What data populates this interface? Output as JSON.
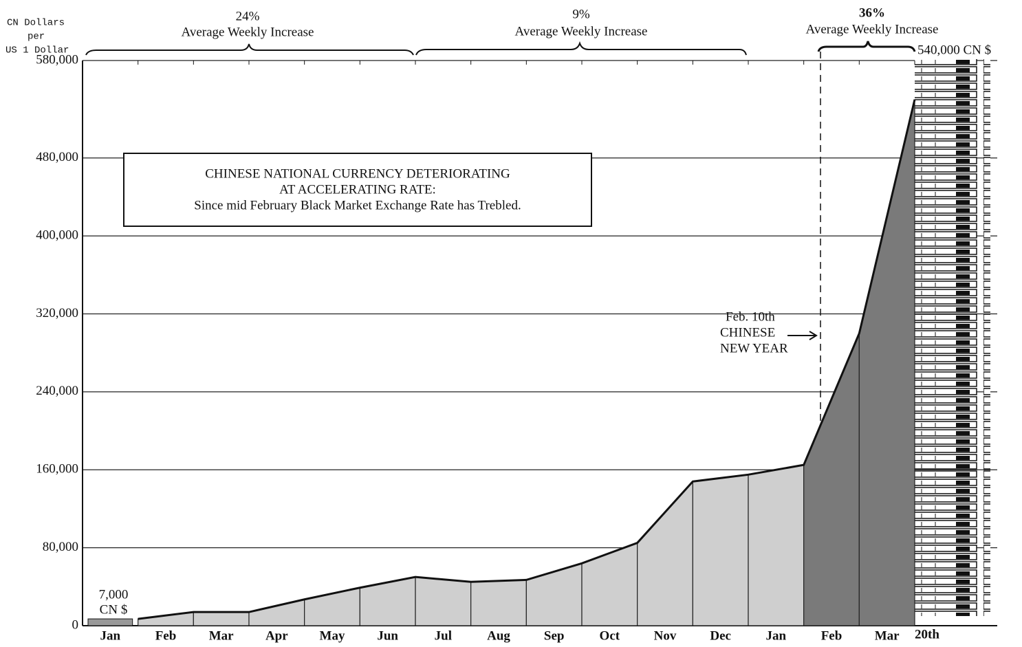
{
  "chart_data": {
    "type": "area",
    "y_axis_label": [
      "CN Dollars",
      "per",
      "US 1 Dollar"
    ],
    "categories": [
      "Jan",
      "Feb",
      "Mar",
      "Apr",
      "May",
      "Jun",
      "Jul",
      "Aug",
      "Sep",
      "Oct",
      "Nov",
      "Dec",
      "Jan",
      "Feb",
      "Mar"
    ],
    "end_label": "20th",
    "values": [
      7000,
      14000,
      14000,
      27000,
      39000,
      50000,
      45000,
      47000,
      64000,
      85000,
      148000,
      155000,
      165000,
      300000,
      540000
    ],
    "colors": {
      "light": "#cfcfcf",
      "dark": "#7a7a7a"
    },
    "dark_from": 13,
    "ylim": [
      0,
      580000
    ],
    "yticks": [
      0,
      {
        "value": 80000,
        "label": "80,000"
      },
      {
        "value": 160000,
        "label": "160,000"
      },
      {
        "value": 240000,
        "label": "240,000"
      },
      {
        "value": 320000,
        "label": "320,000"
      },
      {
        "value": 400000,
        "label": "400,000"
      },
      {
        "value": 480000,
        "label": "480,000"
      },
      {
        "value": 580000,
        "label": "580,000"
      }
    ],
    "grid": true,
    "periods": [
      {
        "rate": "24%",
        "label": "Average Weekly Increase"
      },
      {
        "rate": "9%",
        "label": "Average Weekly Increase"
      },
      {
        "rate": "36%",
        "label": "Average Weekly Increase"
      }
    ],
    "start_annotation": [
      "7,000",
      "CN $"
    ],
    "end_annotation": "540,000 CN $",
    "box": [
      "CHINESE NATIONAL CURRENCY DETERIORATING",
      "AT ACCELERATING RATE:",
      "Since mid February Black Market Exchange Rate has Trebled."
    ],
    "new_year": [
      "Feb. 10th",
      "CHINESE",
      "NEW YEAR"
    ]
  }
}
